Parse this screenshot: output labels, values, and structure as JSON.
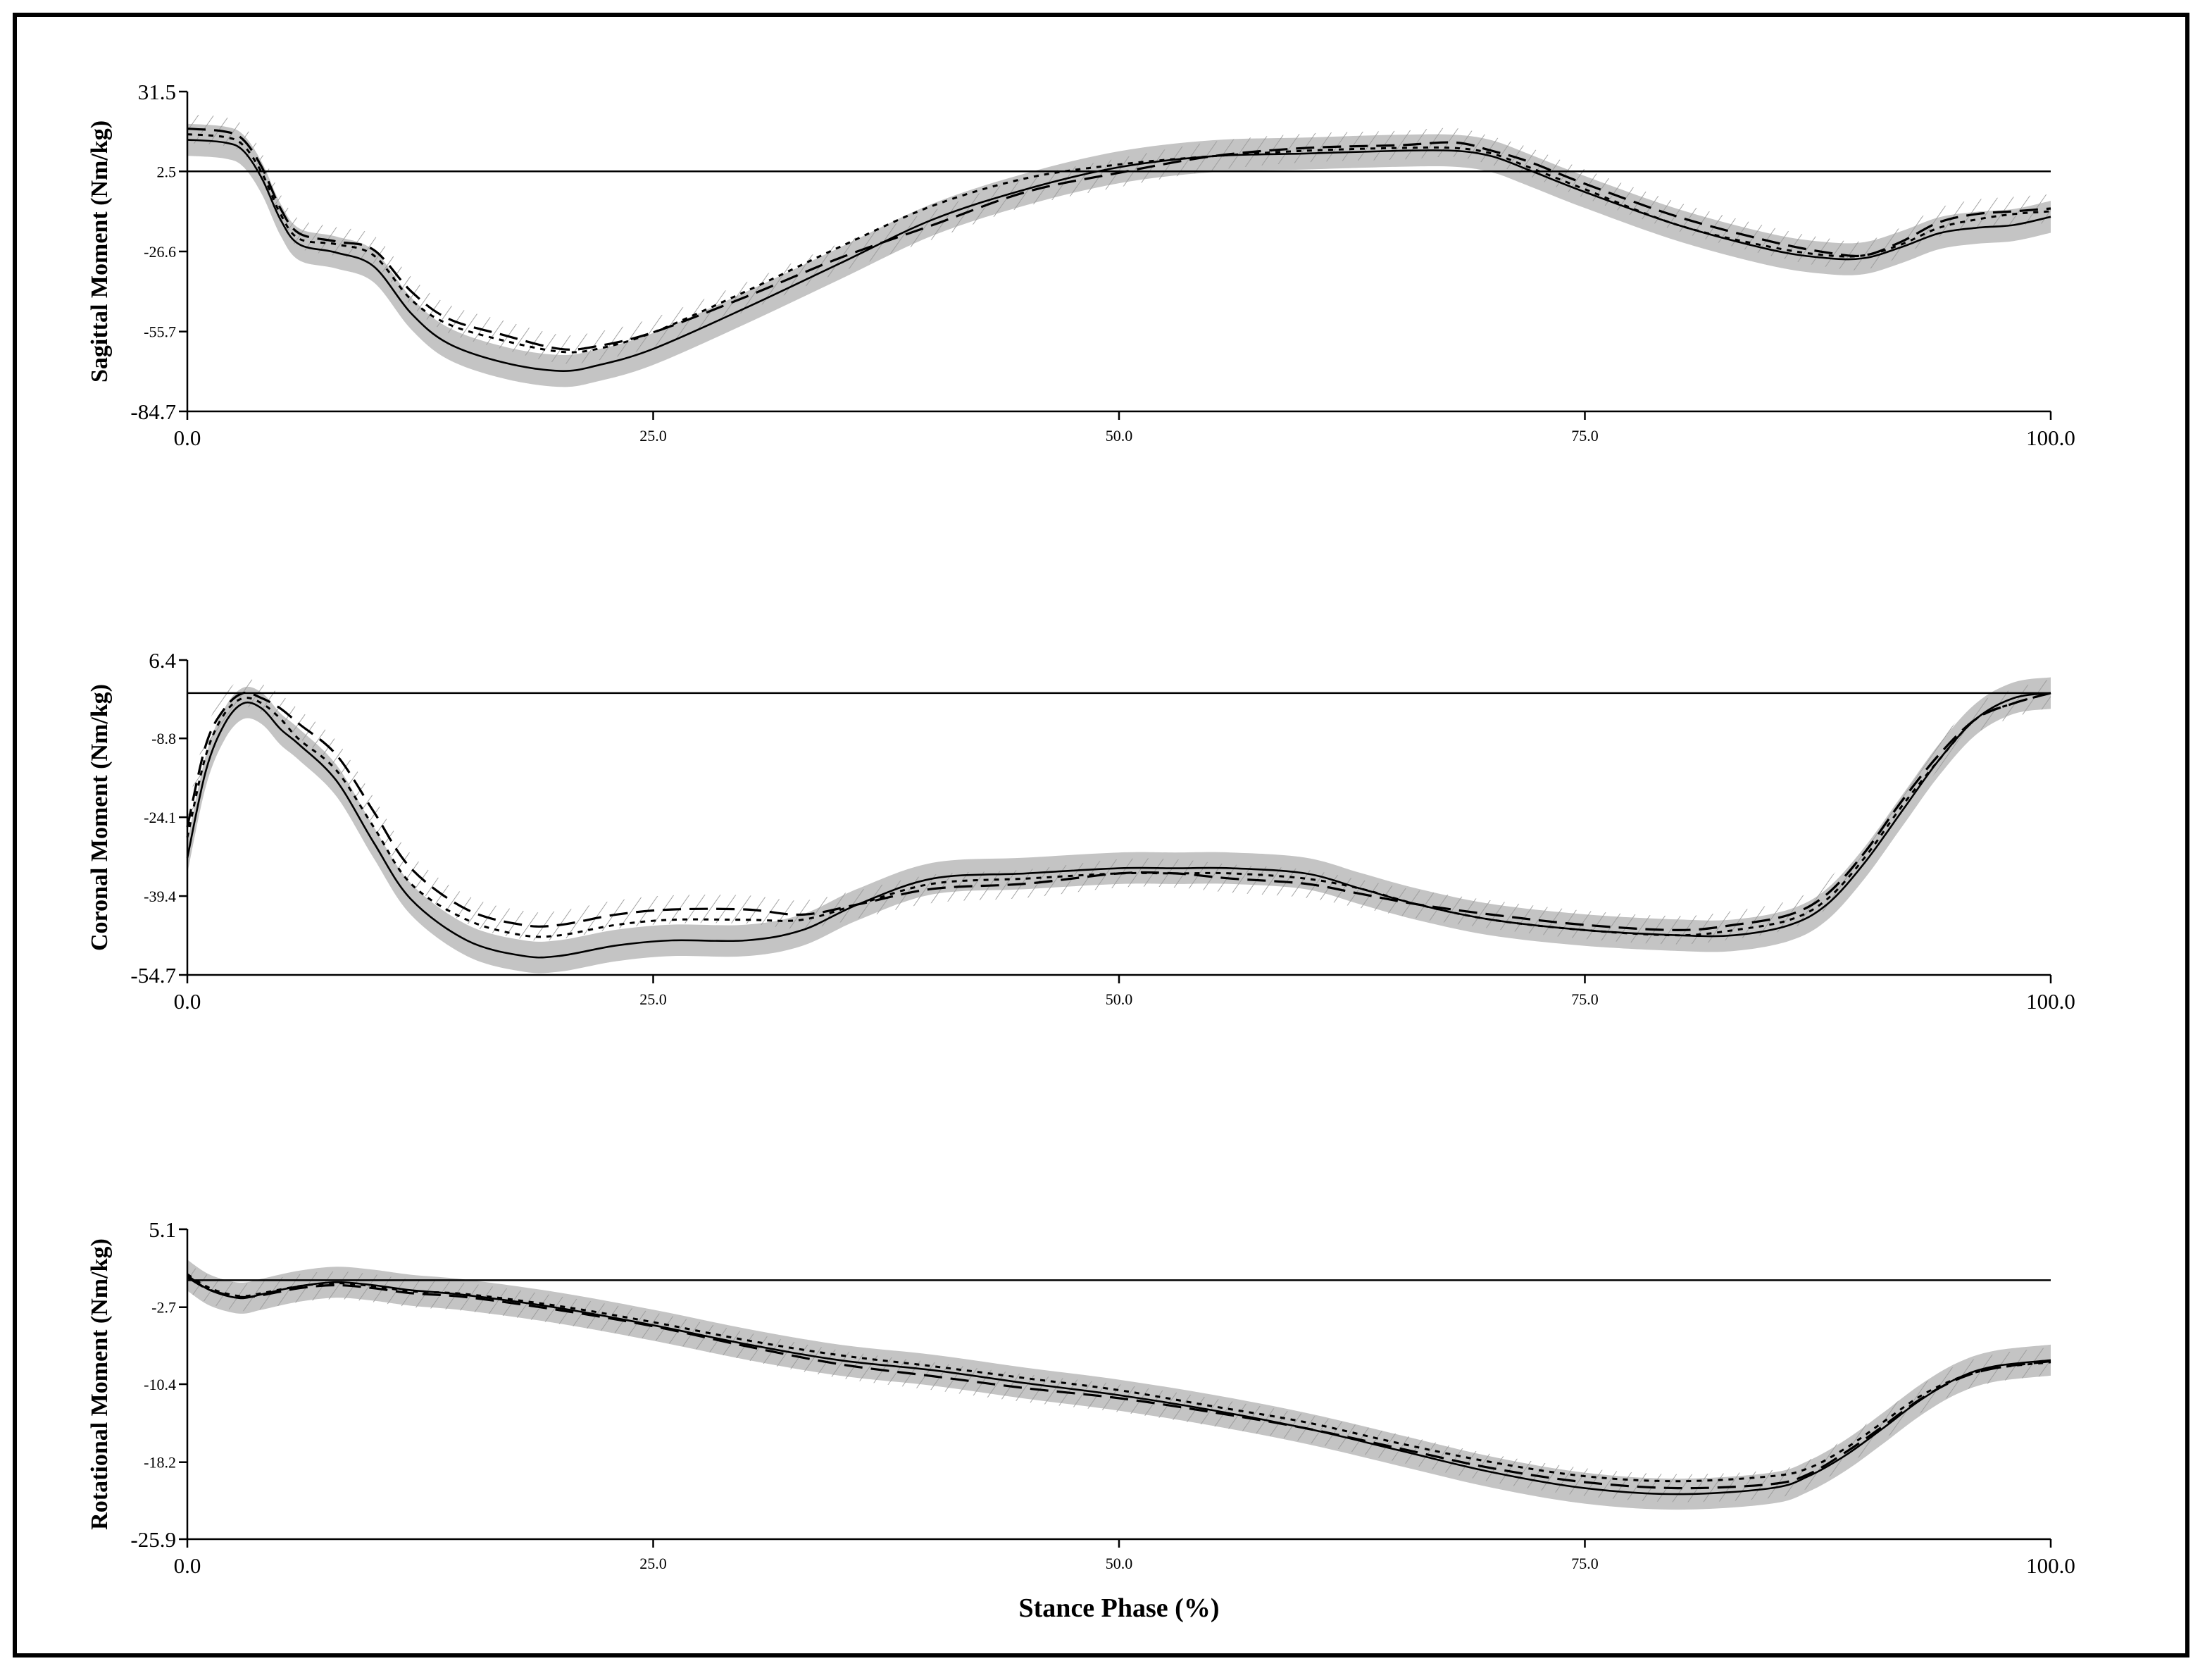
{
  "chart_data": [
    {
      "type": "line",
      "id": "sagittal",
      "ylabel": "Sagittal Moment (Nm/kg)",
      "xlabel": "",
      "xlim": [
        0,
        100
      ],
      "ylim": [
        -84.7,
        31.5
      ],
      "yticks": [
        "31.5",
        "2.5",
        "-26.6",
        "-55.7",
        "-84.7"
      ],
      "ytick_values": [
        31.5,
        2.5,
        -26.6,
        -55.7,
        -84.7
      ],
      "xticks": [
        "0.0",
        "25.0",
        "50.0",
        "75.0",
        "100.0"
      ],
      "xtick_values": [
        0,
        25,
        50,
        75,
        100
      ],
      "zero_line": 2.5,
      "x": [
        0,
        2,
        3,
        4,
        5,
        6,
        8,
        10,
        12,
        14,
        17,
        20,
        22,
        25,
        30,
        35,
        40,
        45,
        50,
        55,
        60,
        65,
        68,
        70,
        72,
        75,
        80,
        85,
        88,
        90,
        92,
        94,
        96,
        98,
        100
      ],
      "series": [
        {
          "style": "solid",
          "band": "gray",
          "values": [
            14,
            13,
            10,
            0,
            -15,
            -24,
            -27,
            -32,
            -49,
            -60,
            -67,
            -70,
            -68,
            -62,
            -47,
            -31,
            -15,
            -4,
            4,
            8,
            9,
            10,
            10,
            8,
            3,
            -5,
            -17,
            -26,
            -29,
            -29,
            -25,
            -20,
            -18,
            -17,
            -14
          ]
        },
        {
          "style": "dotted",
          "values": [
            16,
            15,
            12,
            2,
            -13,
            -22,
            -24,
            -28,
            -44,
            -53,
            -59,
            -63,
            -62,
            -56,
            -41,
            -25,
            -10,
            0,
            5,
            8,
            10,
            11,
            11,
            9,
            4,
            -4,
            -17,
            -25,
            -28,
            -28,
            -24,
            -18,
            -15,
            -13,
            -12
          ]
        },
        {
          "style": "dashed",
          "band": "hatched",
          "values": [
            18,
            17,
            14,
            4,
            -11,
            -20,
            -23,
            -26,
            -41,
            -51,
            -57,
            -62,
            -61,
            -56,
            -43,
            -29,
            -17,
            -5,
            2,
            8,
            11,
            12,
            13,
            10,
            6,
            -2,
            -14,
            -23,
            -27,
            -28,
            -23,
            -16,
            -13,
            -12,
            -11
          ]
        }
      ]
    },
    {
      "type": "line",
      "id": "coronal",
      "ylabel": "Coronal Moment (Nm/kg)",
      "xlabel": "",
      "xlim": [
        0,
        100
      ],
      "ylim": [
        -54.7,
        6.4
      ],
      "yticks": [
        "6.4",
        "-8.8",
        "-24.1",
        "-39.4",
        "-54.7"
      ],
      "ytick_values": [
        6.4,
        -8.8,
        -24.1,
        -39.4,
        -54.7
      ],
      "xticks": [
        "0.0",
        "25.0",
        "50.0",
        "75.0",
        "100.0"
      ],
      "xtick_values": [
        0,
        25,
        50,
        75,
        100
      ],
      "zero_line": 0,
      "x": [
        0,
        1,
        2,
        3,
        4,
        5,
        6,
        8,
        10,
        12,
        15,
        18,
        20,
        23,
        26,
        30,
        33,
        36,
        40,
        45,
        50,
        53,
        56,
        60,
        63,
        66,
        70,
        75,
        80,
        83,
        86,
        88,
        90,
        92,
        94,
        96,
        98,
        100
      ],
      "series": [
        {
          "style": "solid",
          "band": "gray",
          "values": [
            -32,
            -15,
            -6,
            -2,
            -3,
            -7,
            -10,
            -17,
            -29,
            -40,
            -48,
            -51,
            -51,
            -49,
            -48,
            -48,
            -46,
            -41,
            -36,
            -35,
            -34,
            -34,
            -34,
            -35,
            -38,
            -41,
            -44,
            -46,
            -47,
            -47,
            -45,
            -41,
            -33,
            -23,
            -13,
            -5,
            -1,
            0
          ]
        },
        {
          "style": "dotted",
          "values": [
            -28,
            -12,
            -4,
            -1,
            -2,
            -5,
            -9,
            -15,
            -26,
            -37,
            -44,
            -47,
            -47,
            -45,
            -44,
            -44,
            -44,
            -41,
            -37,
            -36,
            -35,
            -35,
            -35,
            -36,
            -38,
            -41,
            -44,
            -46,
            -47,
            -46,
            -44,
            -40,
            -32,
            -22,
            -13,
            -5,
            -2,
            0
          ]
        },
        {
          "style": "dashed",
          "band": "hatched",
          "values": [
            -26,
            -10,
            -3,
            0,
            -1,
            -3,
            -6,
            -12,
            -23,
            -34,
            -42,
            -45,
            -45,
            -43,
            -42,
            -42,
            -43,
            -41,
            -38,
            -37,
            -35,
            -35,
            -36,
            -37,
            -39,
            -41,
            -43,
            -45,
            -46,
            -45,
            -43,
            -39,
            -31,
            -21,
            -12,
            -5,
            -2,
            0
          ]
        }
      ]
    },
    {
      "type": "line",
      "id": "rotational",
      "ylabel": "Rotational Moment (Nm/kg)",
      "xlabel": "Stance Phase (%)",
      "xlim": [
        0,
        100
      ],
      "ylim": [
        -25.9,
        5.1
      ],
      "yticks": [
        "5.1",
        "-2.7",
        "-10.4",
        "-18.2",
        "-25.9"
      ],
      "ytick_values": [
        5.1,
        -2.7,
        -10.4,
        -18.2,
        -25.9
      ],
      "xticks": [
        "0.0",
        "25.0",
        "50.0",
        "75.0",
        "100.0"
      ],
      "xtick_values": [
        0,
        25,
        50,
        75,
        100
      ],
      "zero_line": 0,
      "x": [
        0,
        1,
        2,
        3,
        4,
        6,
        8,
        10,
        12,
        15,
        20,
        25,
        30,
        35,
        40,
        45,
        50,
        55,
        60,
        65,
        70,
        75,
        80,
        85,
        87,
        89,
        91,
        93,
        95,
        97,
        100
      ],
      "series": [
        {
          "style": "solid",
          "band": "gray",
          "values": [
            0.5,
            -0.8,
            -1.5,
            -1.8,
            -1.4,
            -0.6,
            -0.2,
            -0.5,
            -1.0,
            -1.5,
            -2.8,
            -4.5,
            -6.4,
            -8.0,
            -9.0,
            -10.3,
            -11.5,
            -13.0,
            -14.8,
            -17.0,
            -19.2,
            -20.8,
            -21.4,
            -20.8,
            -19.6,
            -17.5,
            -14.8,
            -12.0,
            -9.8,
            -8.6,
            -8.0
          ]
        },
        {
          "style": "dotted",
          "values": [
            0.6,
            -0.6,
            -1.3,
            -1.6,
            -1.3,
            -0.6,
            -0.3,
            -0.6,
            -1.1,
            -1.4,
            -2.6,
            -4.2,
            -6.0,
            -7.5,
            -8.6,
            -9.8,
            -11.0,
            -12.6,
            -14.2,
            -16.3,
            -18.2,
            -19.6,
            -20.1,
            -19.6,
            -18.8,
            -16.8,
            -14.2,
            -11.6,
            -9.8,
            -8.8,
            -8.2
          ]
        },
        {
          "style": "dashed",
          "band": "hatched",
          "values": [
            0.3,
            -0.8,
            -1.4,
            -1.7,
            -1.5,
            -0.8,
            -0.5,
            -0.8,
            -1.3,
            -1.7,
            -3.0,
            -4.6,
            -6.6,
            -8.4,
            -9.6,
            -10.8,
            -11.8,
            -13.2,
            -14.8,
            -16.8,
            -18.8,
            -20.2,
            -20.8,
            -20.4,
            -19.4,
            -17.2,
            -14.6,
            -11.9,
            -9.9,
            -8.8,
            -8.1
          ]
        }
      ]
    }
  ]
}
